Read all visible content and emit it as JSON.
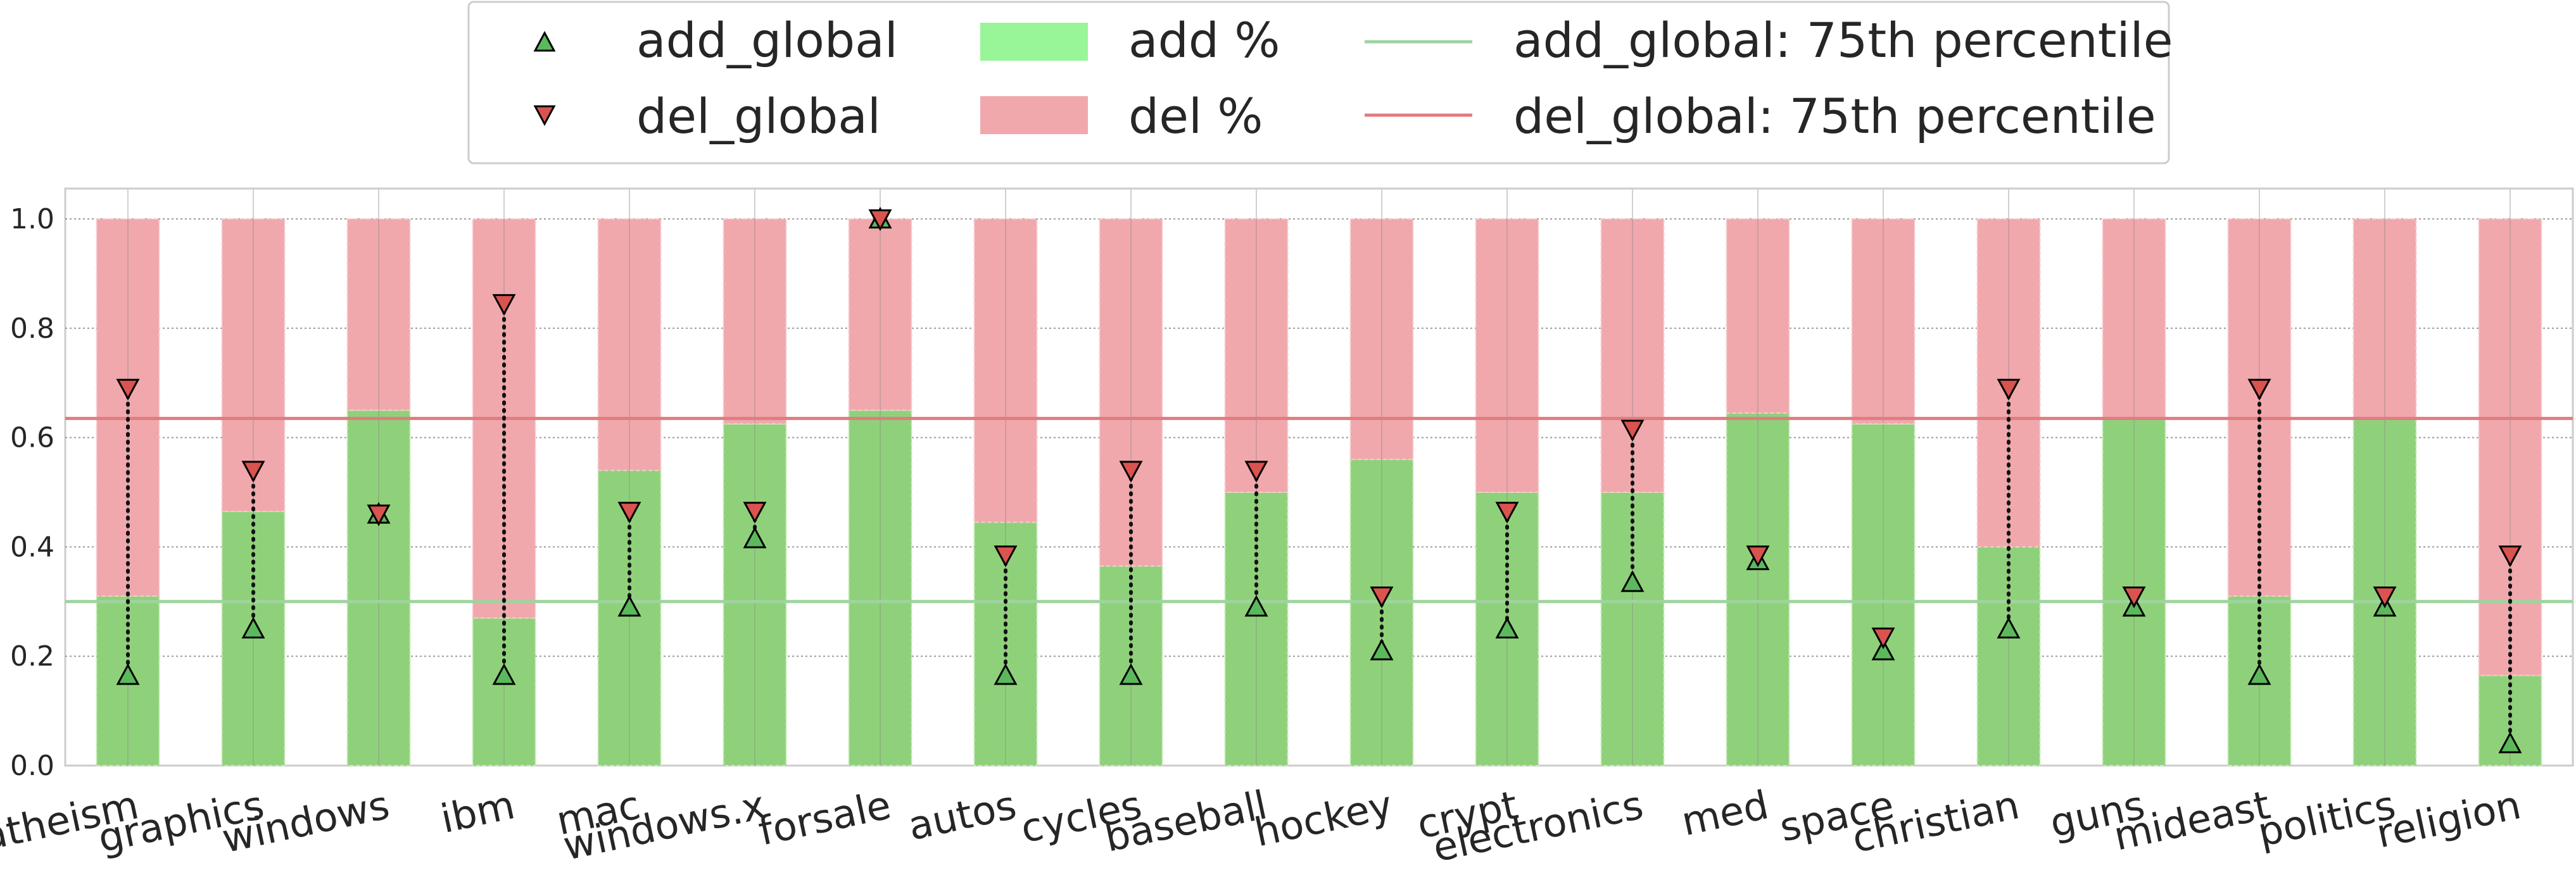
{
  "chart_data": {
    "type": "bar",
    "stacked": true,
    "categories": [
      "atheism",
      "graphics",
      "windows",
      "ibm",
      "mac",
      "windows.x",
      "forsale",
      "autos",
      "cycles",
      "baseball",
      "hockey",
      "crypt",
      "electronics",
      "med",
      "space",
      "christian",
      "guns",
      "mideast",
      "politics",
      "religion"
    ],
    "series": [
      {
        "name": "add %",
        "kind": "bar",
        "color": "#8fd17a",
        "values": [
          0.31,
          0.465,
          0.65,
          0.27,
          0.54,
          0.625,
          0.65,
          0.445,
          0.365,
          0.5,
          0.56,
          0.5,
          0.5,
          0.645,
          0.625,
          0.4,
          0.635,
          0.31,
          0.635,
          0.165
        ]
      },
      {
        "name": "del %",
        "kind": "bar",
        "color": "#f0a8ac",
        "values": [
          0.69,
          0.535,
          0.35,
          0.73,
          0.46,
          0.375,
          0.35,
          0.555,
          0.635,
          0.5,
          0.44,
          0.5,
          0.5,
          0.355,
          0.375,
          0.6,
          0.365,
          0.69,
          0.365,
          0.835
        ]
      },
      {
        "name": "add_global",
        "kind": "marker",
        "marker": "triangle-up",
        "color": "#5cb85c",
        "values": [
          0.165,
          0.25,
          0.46,
          0.165,
          0.29,
          0.415,
          1.0,
          0.165,
          0.165,
          0.29,
          0.21,
          0.25,
          0.335,
          0.375,
          0.21,
          0.25,
          0.29,
          0.165,
          0.29,
          0.04
        ]
      },
      {
        "name": "del_global",
        "kind": "marker",
        "marker": "triangle-down",
        "color": "#d9534f",
        "values": [
          0.69,
          0.54,
          0.46,
          0.845,
          0.465,
          0.465,
          1.0,
          0.385,
          0.54,
          0.54,
          0.31,
          0.465,
          0.615,
          0.385,
          0.235,
          0.69,
          0.31,
          0.69,
          0.31,
          0.385
        ]
      },
      {
        "name": "add_global: 75th percentile",
        "kind": "hline",
        "color": "#9fd49f",
        "value": 0.3
      },
      {
        "name": "del_global: 75th percentile",
        "kind": "hline",
        "color": "#e07c80",
        "value": 0.635
      }
    ],
    "ylim": [
      0,
      1.0
    ],
    "yticks": [
      "0.0",
      "0.2",
      "0.4",
      "0.6",
      "0.8",
      "1.0"
    ],
    "ytick_values": [
      0,
      0.2,
      0.4,
      0.6,
      0.8,
      1.0
    ],
    "grid": true,
    "legend_position": "top-center",
    "title": "",
    "xlabel": "",
    "ylabel": ""
  },
  "legend": {
    "add_global": "add_global",
    "del_global": "del_global",
    "add_pct": "add %",
    "del_pct": "del %",
    "add_p75": "add_global: 75th percentile",
    "del_p75": "del_global: 75th percentile"
  }
}
